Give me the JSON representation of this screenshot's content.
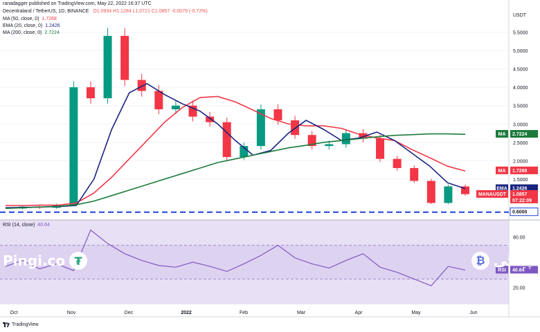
{
  "publisher_line": "ranadagger published on TradingView.com, May 22, 2022 16:37 UTC",
  "symbol_line": "Decentraland / TetherUS, 1D, BINANCE",
  "ohlc": {
    "o": "O1.0934",
    "h": "H1.1284",
    "l": "L1.0721",
    "c": "C1.0857",
    "chg": "-0.0079 (-0.72%)"
  },
  "indicators": [
    {
      "label": "MA (50, close, 0)",
      "value": "1.7268"
    },
    {
      "label": "EMA (20, close, 0)",
      "value": "1.2426"
    },
    {
      "label": "MA (200, close, 0)",
      "value": "2.7224"
    }
  ],
  "rsi_label": "RSI (14, close)",
  "rsi_value": "40.64",
  "currency": "USDT",
  "tradingview_logo": "TradingView",
  "watermark_left": "Pingi.co",
  "watermark_right": "پینگی",
  "colors": {
    "ma50": "#f23645",
    "ema20": "#1a237e",
    "ma200": "#1b7a3b",
    "up": "#089981",
    "down": "#f23645",
    "rsi": "#7e57c2",
    "support": "#1e40d8"
  },
  "chart_data": {
    "type": "candlestick",
    "price_axis_ticks": [
      5.5,
      5.0,
      4.5,
      4.0,
      3.5,
      3.0,
      2.5,
      2.0,
      1.5
    ],
    "ylim": [
      0.5,
      6.0
    ],
    "x_ticks": [
      "Oct",
      "Nov",
      "Dec",
      "2022",
      "Feb",
      "Mar",
      "Apr",
      "May",
      "Jun"
    ],
    "support_level": 0.6,
    "price_labels": [
      {
        "name": "MA",
        "value": "2.7224",
        "color": "#1b7a3b"
      },
      {
        "name": "MA",
        "value": "1.7268",
        "color": "#f23645"
      },
      {
        "name": "EMA",
        "value": "1.2426",
        "color": "#1a237e"
      },
      {
        "name": "MANAUSDT",
        "value": "1.0857",
        "sub": "07:22:09",
        "color": "#f23645"
      },
      {
        "name": "",
        "value": "0.6000",
        "color": "#ffffff"
      }
    ],
    "series": [
      {
        "name": "MA (50, close, 0)",
        "values": [
          0.78,
          0.78,
          0.79,
          0.79,
          0.85,
          1.12,
          1.55,
          2.05,
          2.55,
          3.05,
          3.45,
          3.72,
          3.75,
          3.6,
          3.38,
          3.15,
          3.0,
          2.95,
          2.95,
          2.88,
          2.72,
          2.62,
          2.55,
          2.3,
          2.08,
          1.85,
          1.72
        ]
      },
      {
        "name": "EMA (20, close, 0)",
        "values": [
          0.72,
          0.73,
          0.74,
          0.75,
          0.78,
          1.5,
          2.85,
          3.85,
          4.1,
          3.8,
          3.55,
          3.35,
          3.0,
          2.55,
          2.15,
          2.28,
          2.75,
          3.1,
          2.85,
          2.55,
          2.62,
          2.78,
          2.55,
          2.2,
          1.85,
          1.4,
          1.24
        ]
      },
      {
        "name": "MA (200, close, 0)",
        "values": [
          0.7,
          0.72,
          0.74,
          0.76,
          0.8,
          0.9,
          1.05,
          1.2,
          1.35,
          1.5,
          1.65,
          1.8,
          1.95,
          2.05,
          2.15,
          2.25,
          2.35,
          2.42,
          2.5,
          2.55,
          2.6,
          2.65,
          2.69,
          2.71,
          2.73,
          2.73,
          2.72
        ]
      },
      {
        "name": "close",
        "values": [
          0.7,
          0.75,
          0.72,
          0.8,
          4.0,
          3.7,
          5.4,
          4.2,
          3.9,
          3.4,
          3.5,
          3.2,
          3.05,
          2.1,
          2.4,
          3.4,
          3.1,
          2.7,
          2.4,
          2.45,
          2.75,
          2.6,
          2.05,
          1.8,
          1.45,
          0.85,
          1.3,
          1.09
        ]
      },
      {
        "name": "RSI (14, close)",
        "values": [
          45,
          52,
          42,
          48,
          40,
          88,
          72,
          60,
          52,
          46,
          44,
          50,
          45,
          39,
          48,
          58,
          70,
          55,
          48,
          43,
          52,
          60,
          44,
          38,
          30,
          22,
          45,
          40.64
        ]
      }
    ],
    "rsi_axis_ticks": [
      80.0,
      40.64,
      20.0
    ],
    "rsi_band": [
      30,
      70
    ]
  }
}
